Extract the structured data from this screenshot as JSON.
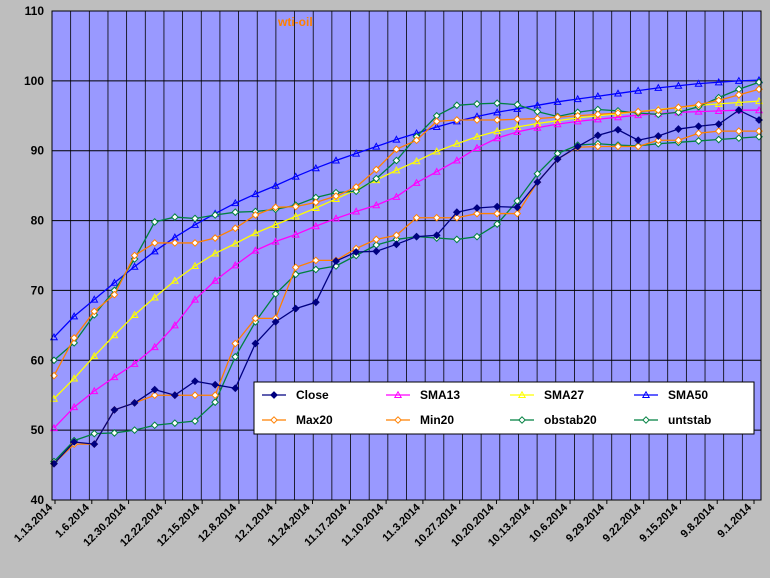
{
  "chart_data": {
    "type": "line",
    "title": "wti-oil",
    "xlabel": "",
    "ylabel": "",
    "ylim": [
      40,
      110
    ],
    "yticks": [
      "40",
      "50",
      "60",
      "70",
      "80",
      "90",
      "100",
      "110"
    ],
    "x_tick_labels": [
      "1.13.2014",
      "1.6.2014",
      "12.30.2014",
      "12.22.2014",
      "12.15.2014",
      "12.8.2014",
      "12.1.2014",
      "11.24.2014",
      "11.17.2014",
      "11.10.2014",
      "11.3.2014",
      "10.27.2014",
      "10.20.2014",
      "10.13.2014",
      "10.6.2014",
      "9.29.2014",
      "9.22.2014",
      "9.15.2014",
      "9.8.2014",
      "9.1.2014"
    ],
    "grid": true,
    "legend_position": "bottom-right",
    "series": [
      {
        "name": "Close",
        "color": "#000080",
        "marker": "diamond",
        "values": [
          45.2,
          48.3,
          48.0,
          52.9,
          53.9,
          55.8,
          55.0,
          57.0,
          56.5,
          56.0,
          62.4,
          65.5,
          67.4,
          68.3,
          74.2,
          75.5,
          75.6,
          76.6,
          77.7,
          77.9,
          81.2,
          81.8,
          82.0,
          81.9,
          85.5,
          88.8,
          90.6,
          92.2,
          93.0,
          91.5,
          92.1,
          93.1,
          93.5,
          93.8,
          95.8,
          94.4
        ]
      },
      {
        "name": "SMA13",
        "color": "#FF00FF",
        "marker": "triangle",
        "values": [
          50.3,
          53.3,
          55.6,
          57.6,
          59.5,
          61.9,
          65.0,
          68.7,
          71.4,
          73.6,
          75.7,
          77.0,
          78.0,
          79.2,
          80.3,
          81.3,
          82.2,
          83.4,
          85.4,
          87.0,
          88.6,
          90.4,
          91.8,
          92.7,
          93.3,
          93.8,
          94.2,
          94.5,
          94.8,
          95.1,
          95.3,
          95.5,
          95.6,
          95.7,
          95.8,
          95.8
        ]
      },
      {
        "name": "SMA27",
        "color": "#FFFF00",
        "marker": "triangle",
        "values": [
          54.5,
          57.4,
          60.6,
          63.6,
          66.5,
          69.0,
          71.4,
          73.5,
          75.3,
          76.7,
          78.2,
          79.4,
          80.6,
          81.8,
          83.1,
          84.4,
          85.8,
          87.2,
          88.5,
          89.9,
          91.0,
          92.0,
          92.8,
          93.4,
          93.9,
          94.3,
          94.7,
          95.0,
          95.3,
          95.6,
          95.9,
          96.2,
          96.5,
          96.7,
          96.9,
          97.1
        ]
      },
      {
        "name": "SMA50",
        "color": "#0000FF",
        "marker": "triangle",
        "values": [
          63.3,
          66.3,
          68.7,
          71.1,
          73.4,
          75.6,
          77.6,
          79.4,
          81.0,
          82.5,
          83.8,
          85.0,
          86.3,
          87.5,
          88.6,
          89.6,
          90.6,
          91.6,
          92.5,
          93.4,
          94.2,
          94.9,
          95.5,
          96.0,
          96.5,
          97.0,
          97.4,
          97.8,
          98.2,
          98.6,
          99.0,
          99.3,
          99.6,
          99.8,
          100.0,
          100.1
        ]
      },
      {
        "name": "Max20",
        "color": "#FF8000",
        "marker": "diamond",
        "values": [
          57.8,
          63.2,
          67.0,
          69.4,
          75.0,
          76.8,
          76.8,
          76.8,
          77.5,
          78.9,
          80.8,
          81.9,
          82.0,
          82.6,
          83.5,
          84.8,
          87.3,
          90.2,
          91.5,
          94.2,
          94.4,
          94.4,
          94.4,
          94.5,
          94.6,
          94.8,
          95.0,
          95.2,
          95.4,
          95.6,
          95.8,
          96.2,
          96.6,
          97.2,
          98.0,
          98.8
        ]
      },
      {
        "name": "Min20",
        "color": "#FF8000",
        "marker": "diamond",
        "values": [
          45.2,
          48.0,
          48.0,
          52.9,
          53.9,
          55.0,
          55.0,
          55.0,
          55.0,
          62.4,
          66.0,
          66.0,
          73.3,
          74.3,
          74.3,
          76.0,
          77.3,
          77.9,
          80.4,
          80.4,
          80.4,
          81.0,
          81.0,
          81.0,
          85.5,
          88.8,
          90.5,
          90.6,
          90.6,
          90.6,
          91.5,
          91.5,
          92.5,
          92.8,
          92.8,
          92.8
        ]
      },
      {
        "name": "obstab20",
        "color": "#008040",
        "marker": "diamond",
        "values": [
          60.0,
          62.5,
          66.5,
          70.0,
          74.5,
          79.8,
          80.5,
          80.3,
          80.8,
          81.2,
          81.3,
          81.6,
          82.2,
          83.3,
          84.0,
          84.2,
          86.0,
          88.6,
          92.0,
          95.0,
          96.5,
          96.7,
          96.8,
          96.6,
          95.6,
          94.9,
          95.5,
          95.9,
          95.7,
          95.4,
          95.2,
          95.5,
          96.3,
          97.6,
          98.8,
          99.8
        ]
      },
      {
        "name": "untstab",
        "color": "#008040",
        "marker": "diamond",
        "values": [
          45.5,
          48.5,
          49.5,
          49.6,
          50.0,
          50.7,
          51.0,
          51.3,
          54.0,
          60.5,
          65.5,
          69.5,
          72.3,
          73.0,
          73.5,
          75.0,
          76.5,
          77.3,
          77.7,
          77.5,
          77.3,
          77.7,
          79.5,
          82.8,
          86.7,
          89.6,
          90.8,
          91.0,
          90.8,
          90.7,
          91.0,
          91.2,
          91.4,
          91.6,
          91.8,
          92.0
        ]
      }
    ]
  }
}
